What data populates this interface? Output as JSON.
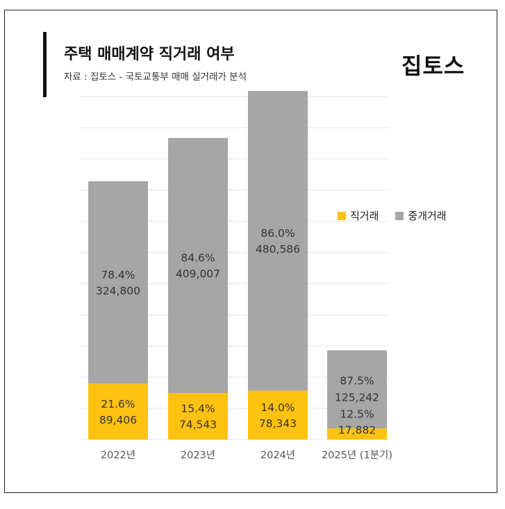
{
  "header": {
    "title": "주택 매매계약 직거래 여부",
    "subtitle": "자료 : 집토스 - 국토교통부 매매 실거래가 분석",
    "brand": "집토스"
  },
  "colors": {
    "direct": "#FFC20E",
    "broker": "#A6A6A6",
    "grid": "#E4E4E4"
  },
  "chart_data": {
    "type": "bar",
    "stacked": true,
    "categories": [
      "2022년",
      "2023년",
      "2024년",
      "2025년 (1분기)"
    ],
    "series": [
      {
        "name": "직거래",
        "values": [
          89406,
          74543,
          78343,
          17882
        ],
        "percent_labels": [
          "21.6%",
          "15.4%",
          "14.0%",
          "12.5%"
        ],
        "value_labels": [
          "89,406",
          "74,543",
          "78,343",
          "17,882"
        ]
      },
      {
        "name": "중개거래",
        "values": [
          324800,
          409007,
          480586,
          125242
        ],
        "percent_labels": [
          "78.4%",
          "84.6%",
          "86.0%",
          "87.5%"
        ],
        "value_labels": [
          "324,800",
          "409,007",
          "480,586",
          "125,242"
        ]
      }
    ],
    "ylim": [
      0,
      560000
    ],
    "grid": true,
    "legend": "right"
  }
}
